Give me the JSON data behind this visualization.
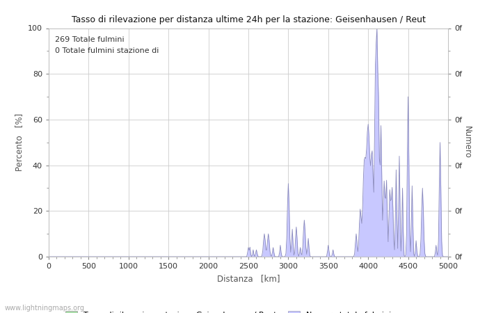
{
  "title": "Tasso di rilevazione per distanza ultime 24h per la stazione: Geisenhausen / Reut",
  "subtitle_line1": "269 Totale fulmini",
  "subtitle_line2": "0 Totale fulmini stazione di",
  "xlabel": "Distanza   [km]",
  "ylabel_left": "Percento   [%]",
  "ylabel_right": "Numero",
  "xlim": [
    0,
    5000
  ],
  "ylim_left": [
    0,
    100
  ],
  "xticks": [
    0,
    500,
    1000,
    1500,
    2000,
    2500,
    3000,
    3500,
    4000,
    4500,
    5000
  ],
  "yticks_left": [
    0,
    20,
    40,
    60,
    80,
    100
  ],
  "legend_label1": "Tasso di rilevazione stazione Geisenhausen / Reut",
  "legend_label2": "Numero totale fulmini",
  "fill_color": "#c8c8ff",
  "line_color": "#8888bb",
  "green_color": "#aaddaa",
  "bg_color": "#ffffff",
  "watermark": "www.lightningmaps.org",
  "grid_color": "#cccccc"
}
